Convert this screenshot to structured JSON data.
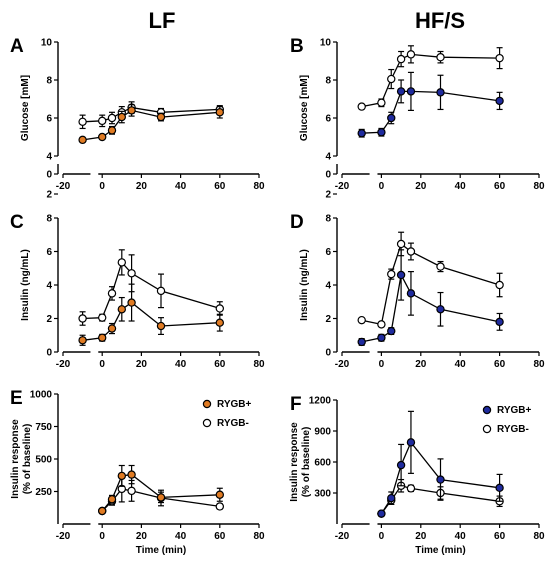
{
  "titles": {
    "left": "LF",
    "right": "HF/S"
  },
  "colors": {
    "lf_plus": "#E07B23",
    "hfs_plus": "#1F2B9E",
    "minus": "#ffffff",
    "stroke": "#000000"
  },
  "chart_data": [
    {
      "id": "A",
      "type": "line",
      "tag": "A",
      "ylabel": "Glucose [mM]",
      "xlabel": "",
      "ylim": [
        0,
        10
      ],
      "yticks": [
        0,
        2,
        4,
        6,
        8,
        10
      ],
      "ybreak": [
        0.3,
        4
      ],
      "xticks": [
        -20,
        0,
        20,
        40,
        60,
        80
      ],
      "series": [
        {
          "key": "plus",
          "x": [
            -10,
            0,
            5,
            10,
            15,
            30,
            60
          ],
          "y": [
            4.85,
            5.0,
            5.35,
            6.05,
            6.4,
            6.05,
            6.3
          ],
          "err": [
            0.1,
            0.1,
            0.2,
            0.3,
            0.3,
            0.2,
            0.3
          ]
        },
        {
          "key": "minus",
          "x": [
            -10,
            0,
            5,
            10,
            15,
            30,
            60
          ],
          "y": [
            5.8,
            5.85,
            6.0,
            6.3,
            6.55,
            6.3,
            6.45
          ],
          "err": [
            0.35,
            0.3,
            0.3,
            0.3,
            0.3,
            0.2,
            0.2
          ]
        }
      ]
    },
    {
      "id": "B",
      "type": "line",
      "tag": "B",
      "ylabel": "Glucose [mM]",
      "xlabel": "",
      "ylim": [
        0,
        10
      ],
      "yticks": [
        0,
        2,
        4,
        6,
        8,
        10
      ],
      "ybreak": [
        0.3,
        4
      ],
      "xticks": [
        -20,
        0,
        20,
        40,
        60,
        80
      ],
      "series": [
        {
          "key": "plus",
          "x": [
            -10,
            0,
            5,
            10,
            15,
            30,
            60
          ],
          "y": [
            5.2,
            5.25,
            6.0,
            7.4,
            7.4,
            7.35,
            6.9
          ],
          "err": [
            0.2,
            0.2,
            0.3,
            0.6,
            1.0,
            0.9,
            0.45
          ]
        },
        {
          "key": "minus",
          "x": [
            -10,
            0,
            5,
            10,
            15,
            30,
            60
          ],
          "y": [
            6.6,
            6.8,
            8.05,
            9.1,
            9.35,
            9.2,
            9.15
          ],
          "err": [
            0.1,
            0.2,
            0.5,
            0.4,
            0.45,
            0.3,
            0.55
          ]
        }
      ]
    },
    {
      "id": "C",
      "type": "line",
      "tag": "C",
      "ylabel": "Insulin (ng/mL)",
      "xlabel": "",
      "ylim": [
        0,
        8
      ],
      "yticks": [
        0,
        2,
        4,
        6,
        8
      ],
      "ybreak": null,
      "xticks": [
        -20,
        0,
        20,
        40,
        60,
        80
      ],
      "series": [
        {
          "key": "plus",
          "x": [
            -10,
            0,
            5,
            10,
            15,
            30,
            60
          ],
          "y": [
            0.7,
            0.85,
            1.4,
            2.55,
            2.95,
            1.55,
            1.75
          ],
          "err": [
            0.3,
            0.2,
            0.3,
            0.7,
            1.1,
            0.5,
            0.5
          ]
        },
        {
          "key": "minus",
          "x": [
            -10,
            0,
            5,
            10,
            15,
            30,
            60
          ],
          "y": [
            2.0,
            2.05,
            3.5,
            5.35,
            4.7,
            3.65,
            2.6
          ],
          "err": [
            0.4,
            0.2,
            0.4,
            0.75,
            1.1,
            1.0,
            0.4
          ]
        }
      ]
    },
    {
      "id": "D",
      "type": "line",
      "tag": "D",
      "ylabel": "Insulin (ng/mL)",
      "xlabel": "",
      "ylim": [
        0,
        8
      ],
      "yticks": [
        0,
        2,
        4,
        6,
        8
      ],
      "ybreak": null,
      "xticks": [
        -20,
        0,
        20,
        40,
        60,
        80
      ],
      "series": [
        {
          "key": "plus",
          "x": [
            -10,
            0,
            5,
            10,
            15,
            30,
            60
          ],
          "y": [
            0.6,
            0.85,
            1.25,
            4.6,
            3.5,
            2.55,
            1.8
          ],
          "err": [
            0.2,
            0.2,
            0.2,
            1.5,
            1.3,
            1.0,
            0.5
          ]
        },
        {
          "key": "minus",
          "x": [
            -10,
            0,
            5,
            10,
            15,
            30,
            60
          ],
          "y": [
            1.9,
            1.65,
            4.65,
            6.45,
            6.0,
            5.1,
            4.0
          ],
          "err": [
            0.05,
            0.05,
            0.3,
            0.7,
            0.5,
            0.3,
            0.7
          ]
        }
      ]
    },
    {
      "id": "E",
      "type": "line",
      "tag": "E",
      "ylabel": "Insulin response",
      "ylabel2": "(% of baseline)",
      "xlabel": "Time (min)",
      "ylim": [
        0,
        1000
      ],
      "yticks": [
        250,
        500,
        750,
        1000
      ],
      "ybreak": null,
      "xticks": [
        -20,
        0,
        20,
        40,
        60,
        80
      ],
      "legend": {
        "plus": "RYGB+",
        "minus": "RYGB-",
        "position": "top-right"
      },
      "series": [
        {
          "key": "plus",
          "x": [
            0,
            5,
            10,
            15,
            30,
            60
          ],
          "y": [
            100,
            190,
            370,
            380,
            205,
            225
          ],
          "err": [
            10,
            30,
            80,
            70,
            40,
            50
          ]
        },
        {
          "key": "minus",
          "x": [
            0,
            5,
            10,
            15,
            30,
            60
          ],
          "y": [
            100,
            175,
            270,
            255,
            200,
            135
          ],
          "err": [
            10,
            30,
            100,
            80,
            60,
            20
          ]
        }
      ]
    },
    {
      "id": "F",
      "type": "line",
      "tag": "F",
      "ylabel": "Insulin response",
      "ylabel2": "(% of baseline)",
      "xlabel": "Time (min)",
      "ylim": [
        0,
        1200
      ],
      "yticks": [
        300,
        600,
        900,
        1200
      ],
      "ybreak": null,
      "xticks": [
        -20,
        0,
        20,
        40,
        60,
        80
      ],
      "legend": {
        "plus": "RYGB+",
        "minus": "RYGB-",
        "position": "top-right"
      },
      "series": [
        {
          "key": "plus",
          "x": [
            0,
            5,
            10,
            15,
            30,
            60
          ],
          "y": [
            100,
            250,
            570,
            790,
            430,
            350
          ],
          "err": [
            10,
            60,
            200,
            300,
            200,
            130
          ]
        },
        {
          "key": "minus",
          "x": [
            0,
            5,
            10,
            15,
            30,
            60
          ],
          "y": [
            100,
            230,
            370,
            345,
            300,
            220
          ],
          "err": [
            10,
            40,
            60,
            30,
            60,
            50
          ]
        }
      ]
    }
  ]
}
